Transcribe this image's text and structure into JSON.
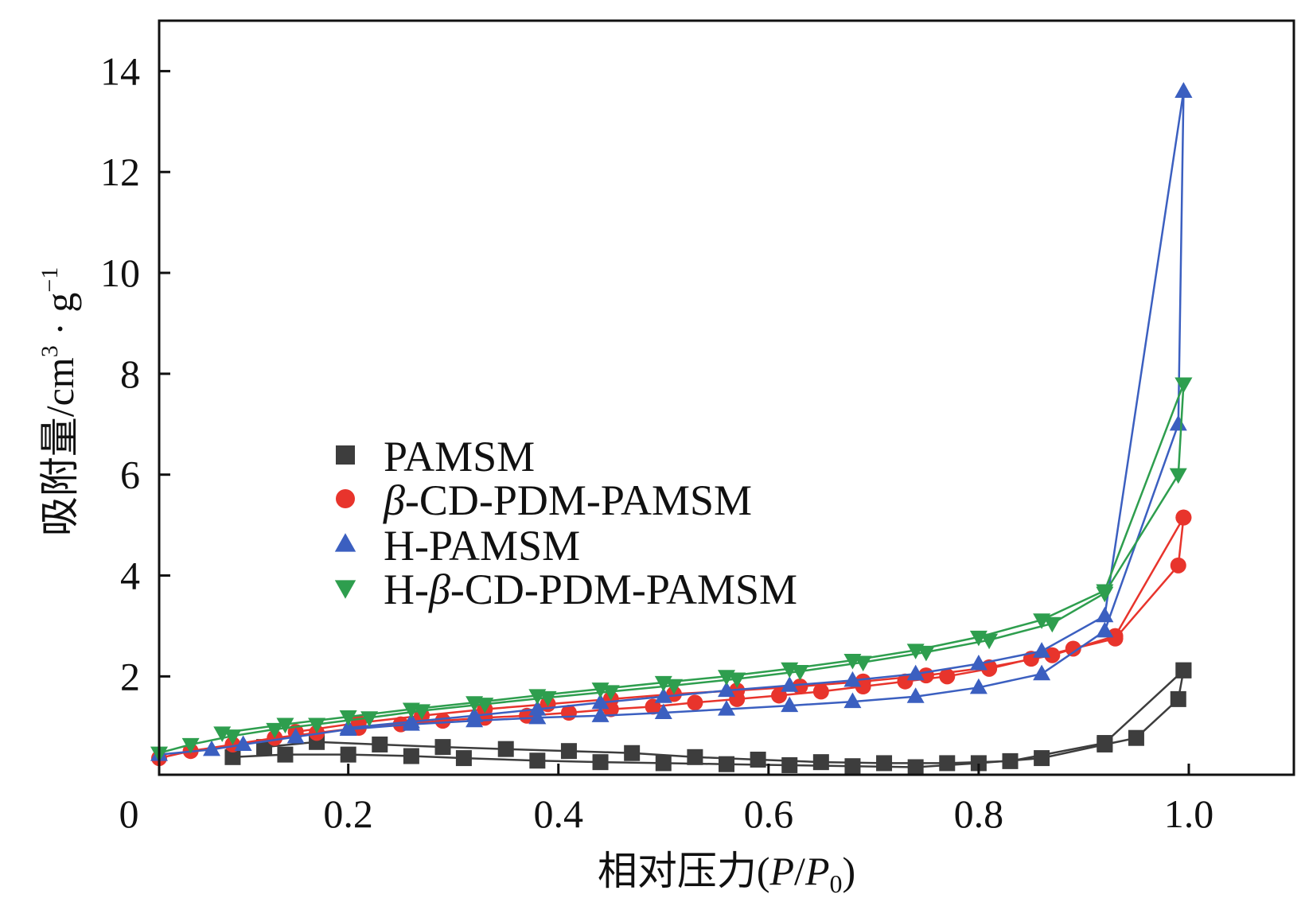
{
  "chart_data": {
    "type": "line",
    "xlabel": "相对压力(P/P0)",
    "xlabel_parts": {
      "main": "相对压力(",
      "p1": "P",
      "slash": "/",
      "p2": "P",
      "sub": "0",
      "close": ")"
    },
    "ylabel": "吸附量/cm3·g-1",
    "ylabel_parts": {
      "main": "吸附量/cm",
      "sup1": "3",
      "dot": " · g",
      "sup2": "−1"
    },
    "xlim": [
      0.02,
      1.1
    ],
    "ylim": [
      0.05,
      15
    ],
    "x_ticks": [
      0.2,
      0.4,
      0.6,
      0.8,
      1.0
    ],
    "x_tick_labels": [
      "0.2",
      "0.4",
      "0.6",
      "0.8",
      "1.0"
    ],
    "y_ticks": [
      2,
      4,
      6,
      8,
      10,
      12,
      14
    ],
    "y_tick_labels": [
      "2",
      "4",
      "6",
      "8",
      "10",
      "12",
      "14"
    ],
    "origin_label": "0",
    "legend_position": "center-left",
    "series": [
      {
        "name": "PAMSM",
        "color": "#3d3d3d",
        "marker": "square",
        "adsorption": {
          "x": [
            0.09,
            0.14,
            0.2,
            0.26,
            0.31,
            0.38,
            0.44,
            0.5,
            0.56,
            0.62,
            0.68,
            0.74,
            0.8,
            0.86,
            0.92,
            0.95,
            0.99,
            0.995
          ],
          "y": [
            0.4,
            0.45,
            0.45,
            0.42,
            0.38,
            0.33,
            0.3,
            0.28,
            0.26,
            0.24,
            0.22,
            0.2,
            0.28,
            0.38,
            0.65,
            0.78,
            1.55,
            2.12
          ]
        },
        "desorption": {
          "x": [
            0.995,
            0.92,
            0.83,
            0.77,
            0.71,
            0.65,
            0.59,
            0.53,
            0.47,
            0.41,
            0.35,
            0.29,
            0.23,
            0.17,
            0.12
          ],
          "y": [
            2.12,
            0.68,
            0.32,
            0.28,
            0.28,
            0.3,
            0.35,
            0.4,
            0.48,
            0.52,
            0.56,
            0.6,
            0.65,
            0.7,
            0.6
          ]
        }
      },
      {
        "name": "β-CD-PDM-PAMSM",
        "color": "#e8342c",
        "marker": "circle",
        "adsorption": {
          "x": [
            0.02,
            0.05,
            0.09,
            0.13,
            0.17,
            0.21,
            0.25,
            0.29,
            0.33,
            0.37,
            0.41,
            0.45,
            0.49,
            0.53,
            0.57,
            0.61,
            0.65,
            0.69,
            0.73,
            0.77,
            0.81,
            0.85,
            0.89,
            0.93,
            0.99,
            0.995
          ],
          "y": [
            0.38,
            0.52,
            0.65,
            0.78,
            0.88,
            0.98,
            1.05,
            1.12,
            1.18,
            1.22,
            1.28,
            1.35,
            1.4,
            1.48,
            1.55,
            1.62,
            1.7,
            1.8,
            1.9,
            2.0,
            2.15,
            2.35,
            2.55,
            2.75,
            4.2,
            5.15
          ]
        },
        "desorption": {
          "x": [
            0.995,
            0.93,
            0.87,
            0.81,
            0.75,
            0.69,
            0.63,
            0.57,
            0.51,
            0.45,
            0.39,
            0.33,
            0.27,
            0.21,
            0.15
          ],
          "y": [
            5.15,
            2.8,
            2.42,
            2.18,
            2.02,
            1.9,
            1.8,
            1.72,
            1.65,
            1.55,
            1.45,
            1.35,
            1.22,
            1.08,
            0.9
          ]
        }
      },
      {
        "name": "H-PAMSM",
        "color": "#3b5fc0",
        "marker": "triangle-up",
        "adsorption": {
          "x": [
            0.02,
            0.07,
            0.1,
            0.15,
            0.2,
            0.26,
            0.32,
            0.38,
            0.44,
            0.5,
            0.56,
            0.62,
            0.68,
            0.74,
            0.8,
            0.86,
            0.92,
            0.99,
            0.995
          ],
          "y": [
            0.45,
            0.55,
            0.65,
            0.8,
            0.95,
            1.05,
            1.12,
            1.18,
            1.22,
            1.28,
            1.35,
            1.42,
            1.5,
            1.6,
            1.78,
            2.05,
            2.9,
            7.0,
            13.6
          ]
        },
        "desorption": {
          "x": [
            0.995,
            0.92,
            0.86,
            0.8,
            0.74,
            0.68,
            0.62,
            0.56,
            0.5,
            0.44,
            0.38,
            0.32,
            0.26,
            0.2
          ],
          "y": [
            13.6,
            3.2,
            2.5,
            2.25,
            2.05,
            1.92,
            1.82,
            1.72,
            1.6,
            1.48,
            1.35,
            1.22,
            1.1,
            0.98
          ]
        }
      },
      {
        "name": "H-β-CD-PDM-PAMSM",
        "color": "#2e9e4e",
        "marker": "triangle-down",
        "adsorption": {
          "x": [
            0.02,
            0.05,
            0.09,
            0.13,
            0.17,
            0.22,
            0.27,
            0.33,
            0.39,
            0.45,
            0.51,
            0.57,
            0.63,
            0.69,
            0.75,
            0.81,
            0.87,
            0.92,
            0.99,
            0.995
          ],
          "y": [
            0.48,
            0.65,
            0.82,
            0.95,
            1.05,
            1.18,
            1.32,
            1.45,
            1.58,
            1.7,
            1.82,
            1.95,
            2.1,
            2.28,
            2.48,
            2.72,
            3.05,
            3.65,
            6.0,
            7.8
          ]
        },
        "desorption": {
          "x": [
            0.995,
            0.92,
            0.86,
            0.8,
            0.74,
            0.68,
            0.62,
            0.56,
            0.5,
            0.44,
            0.38,
            0.32,
            0.26,
            0.2,
            0.14,
            0.08
          ],
          "y": [
            7.8,
            3.7,
            3.12,
            2.78,
            2.52,
            2.32,
            2.15,
            2.0,
            1.88,
            1.75,
            1.62,
            1.48,
            1.35,
            1.2,
            1.05,
            0.88
          ]
        }
      }
    ]
  }
}
